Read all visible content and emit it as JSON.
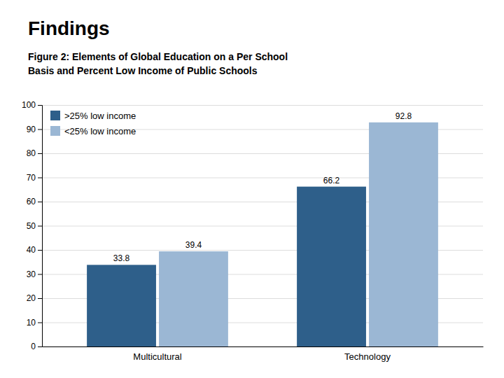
{
  "chart_data": {
    "type": "bar",
    "title": "Findings",
    "subtitle": "Figure 2: Elements of Global Education on a Per School\nBasis and Percent Low Income of Public Schools",
    "categories": [
      "Multicultural",
      "Technology"
    ],
    "series": [
      {
        "name": ">25% low income",
        "color": "#2E5F8A",
        "values": [
          33.8,
          66.2
        ]
      },
      {
        "name": "<25% low income",
        "color": "#9BB7D4",
        "values": [
          39.4,
          92.8
        ]
      }
    ],
    "ylim": [
      0,
      100
    ],
    "yticks": [
      0,
      10,
      20,
      30,
      40,
      50,
      60,
      70,
      80,
      90,
      100
    ],
    "grid": true,
    "data_labels": true,
    "legend": "top-left"
  }
}
